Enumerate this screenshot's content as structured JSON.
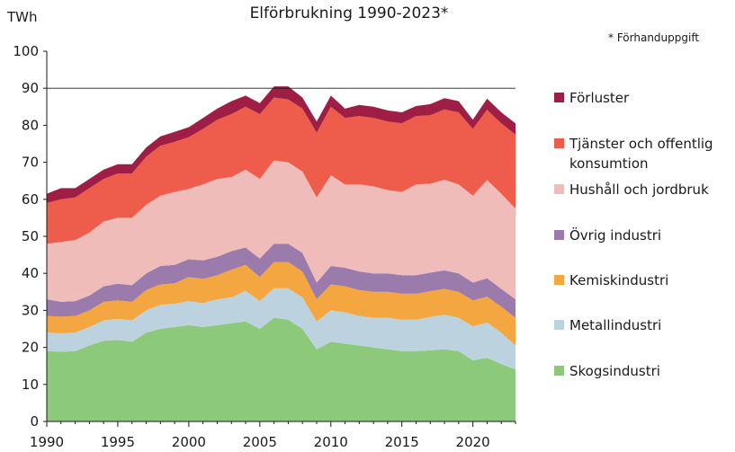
{
  "chart_data": {
    "type": "area",
    "stacked": true,
    "title": "Elförbrukning 1990-2023*",
    "note": "* Förhanduppgift",
    "ylabel": "TWh",
    "xlabel": "",
    "ylim": [
      0,
      100
    ],
    "yticks": [
      0,
      10,
      20,
      30,
      40,
      50,
      60,
      70,
      80,
      90,
      100
    ],
    "xlim": [
      1990,
      2023
    ],
    "xticks": [
      1990,
      1995,
      2000,
      2005,
      2010,
      2015,
      2020
    ],
    "grid": "horizontal at 90",
    "legend_position": "right",
    "x": [
      1990,
      1991,
      1992,
      1993,
      1994,
      1995,
      1996,
      1997,
      1998,
      1999,
      2000,
      2001,
      2002,
      2003,
      2004,
      2005,
      2006,
      2007,
      2008,
      2009,
      2010,
      2011,
      2012,
      2013,
      2014,
      2015,
      2016,
      2017,
      2018,
      2019,
      2020,
      2021,
      2022,
      2023
    ],
    "series": [
      {
        "name": "Skogsindustri",
        "color": "#8cc97a",
        "values": [
          19.0,
          18.8,
          19.0,
          20.5,
          21.8,
          22.0,
          21.5,
          24.0,
          25.0,
          25.5,
          26.0,
          25.5,
          26.0,
          26.5,
          27.0,
          25.0,
          28.0,
          27.5,
          25.0,
          19.5,
          21.5,
          21.0,
          20.5,
          20.0,
          19.5,
          19.0,
          19.0,
          19.2,
          19.5,
          19.0,
          16.5,
          17.2,
          15.5,
          14.0
        ]
      },
      {
        "name": "Metallindustri",
        "color": "#bcd2df",
        "values": [
          5.0,
          5.0,
          5.0,
          5.0,
          5.5,
          5.7,
          5.8,
          6.0,
          6.5,
          6.3,
          6.5,
          6.5,
          7.0,
          7.0,
          8.3,
          7.5,
          8.0,
          8.5,
          8.5,
          7.5,
          8.5,
          8.5,
          8.0,
          8.0,
          8.5,
          8.5,
          8.5,
          9.0,
          9.3,
          9.0,
          9.2,
          9.5,
          8.5,
          6.5
        ]
      },
      {
        "name": "Kemiskindustri",
        "color": "#f4a640",
        "values": [
          4.5,
          4.5,
          4.5,
          4.5,
          5.0,
          5.0,
          5.0,
          5.5,
          5.5,
          5.5,
          6.5,
          6.5,
          6.5,
          7.5,
          7.0,
          6.5,
          7.0,
          7.0,
          7.0,
          6.0,
          7.0,
          7.0,
          7.0,
          7.0,
          7.0,
          7.0,
          7.0,
          7.0,
          7.0,
          7.0,
          7.0,
          7.0,
          7.0,
          7.5
        ]
      },
      {
        "name": "Övrig industri",
        "color": "#9b7bab",
        "values": [
          4.5,
          4.0,
          4.0,
          4.0,
          4.2,
          4.5,
          4.5,
          4.5,
          5.0,
          5.0,
          4.8,
          5.0,
          5.0,
          5.0,
          4.7,
          5.0,
          5.0,
          5.0,
          5.0,
          4.5,
          5.0,
          5.0,
          5.0,
          5.0,
          5.0,
          5.0,
          5.0,
          5.0,
          5.0,
          5.0,
          4.8,
          5.0,
          4.8,
          5.0
        ]
      },
      {
        "name": "Hushåll och jordbruk",
        "color": "#efbcb9",
        "values": [
          15.0,
          16.2,
          16.5,
          17.0,
          17.5,
          17.8,
          18.2,
          18.5,
          19.0,
          19.7,
          19.0,
          20.5,
          21.0,
          20.0,
          21.0,
          21.5,
          22.5,
          22.0,
          22.0,
          23.0,
          24.5,
          22.5,
          23.5,
          23.5,
          22.5,
          22.5,
          24.5,
          24.0,
          24.5,
          24.0,
          23.5,
          26.5,
          25.7,
          24.5
        ]
      },
      {
        "name": "Tjänster och offentlig konsumtion",
        "color": "#ee5d4b",
        "values": [
          11.0,
          11.5,
          11.5,
          12.0,
          11.5,
          12.0,
          12.0,
          13.0,
          13.5,
          13.5,
          14.0,
          15.0,
          16.0,
          17.0,
          17.0,
          17.5,
          17.0,
          17.0,
          17.0,
          17.5,
          18.5,
          18.0,
          18.5,
          18.5,
          18.5,
          18.5,
          18.5,
          18.5,
          19.0,
          19.5,
          18.0,
          19.0,
          19.0,
          20.0
        ]
      },
      {
        "name": "Förluster",
        "color": "#9e1e45",
        "values": [
          2.5,
          3.0,
          2.5,
          2.5,
          2.5,
          2.5,
          2.5,
          2.5,
          2.5,
          2.7,
          2.7,
          3.0,
          3.0,
          3.5,
          3.0,
          3.0,
          3.0,
          3.5,
          3.0,
          3.0,
          3.0,
          2.5,
          3.0,
          3.0,
          3.0,
          3.0,
          2.7,
          3.0,
          3.0,
          3.0,
          2.5,
          3.0,
          3.0,
          3.0
        ]
      }
    ]
  }
}
